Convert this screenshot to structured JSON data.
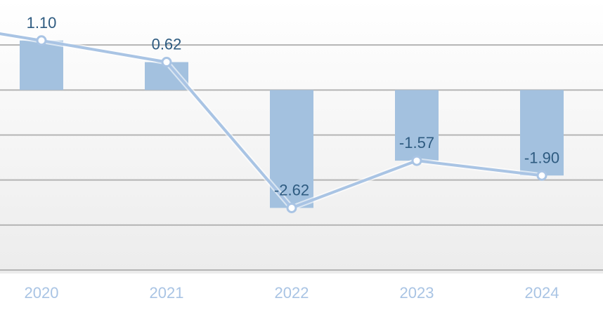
{
  "chart_data": {
    "type": "bar",
    "categories": [
      "2020",
      "2021",
      "2022",
      "2023",
      "2024"
    ],
    "series": [
      {
        "type": "bar",
        "values": [
          1.1,
          0.62,
          -2.62,
          -1.57,
          -1.9
        ]
      },
      {
        "type": "line",
        "values": [
          1.1,
          0.62,
          -2.62,
          -1.57,
          -1.9
        ]
      }
    ],
    "data_labels": [
      "1.10",
      "0.62",
      "-2.62",
      "-1.57",
      "-1.90"
    ],
    "line_start_value": 1.25,
    "title": "",
    "xlabel": "",
    "ylabel": "",
    "ylim": [
      -4.0,
      2.0
    ],
    "grid": true,
    "legend": "none",
    "colors": {
      "bar": "#a3c1df",
      "line": "#a9c4e4",
      "label": "#2e5b80",
      "tick": "#a9c4e4",
      "grid": "#b4b4b4"
    }
  }
}
